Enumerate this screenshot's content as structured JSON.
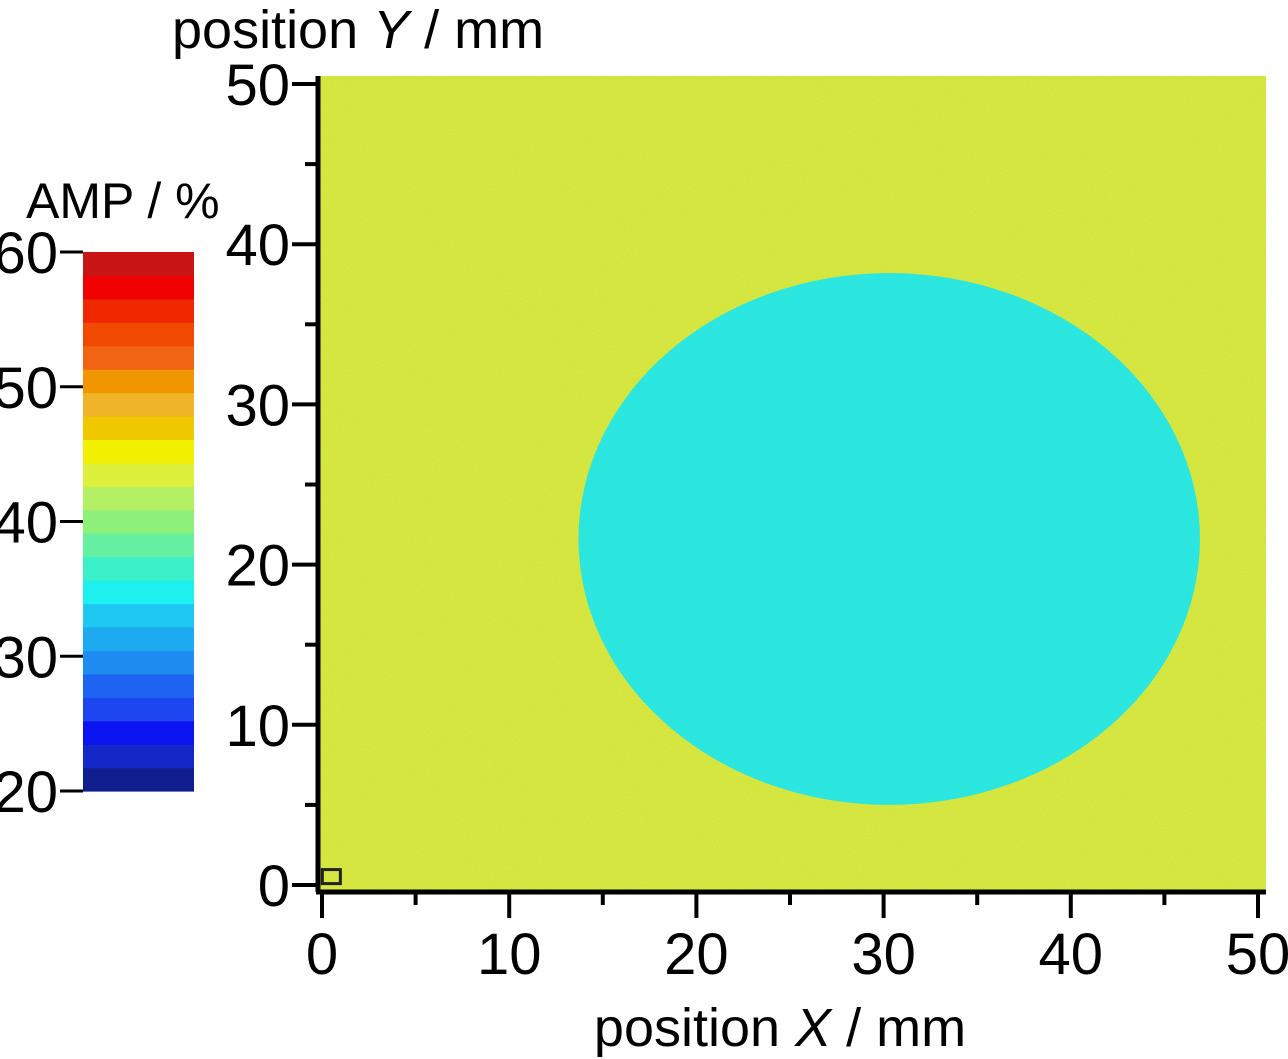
{
  "chart_data": {
    "type": "heatmap",
    "title": "",
    "xlabel": {
      "prefix": "position ",
      "var": "X",
      "suffix": " / mm"
    },
    "ylabel": {
      "prefix": "position ",
      "var": "Y",
      "suffix": " / mm"
    },
    "xlim": [
      0,
      50
    ],
    "ylim": [
      0,
      50
    ],
    "x_ticks": [
      0,
      10,
      20,
      30,
      40,
      50
    ],
    "y_ticks": [
      0,
      10,
      20,
      30,
      40,
      50
    ],
    "x_minor_step": 5,
    "y_minor_step": 5,
    "grid": false,
    "background_value": 44,
    "feature": {
      "shape": "ellipse",
      "center_x": 30.3,
      "center_y": 21.6,
      "radius_x": 16.6,
      "radius_y": 16.6,
      "value": 34
    },
    "corner_marker": {
      "x": 0.5,
      "y": 0.4
    },
    "colorbar": {
      "label": "AMP / %",
      "min": 20,
      "max": 60,
      "ticks": [
        20,
        30,
        40,
        50,
        60
      ],
      "placement": "left",
      "colors": [
        "#0f1e8c",
        "#1428c8",
        "#0a14f0",
        "#1e46f0",
        "#1e64f0",
        "#1e8cf0",
        "#1eaaf0",
        "#1ec8f0",
        "#1ef0f0",
        "#3cf0c8",
        "#64f0a0",
        "#8cf07a",
        "#b4f064",
        "#dcf03c",
        "#f0f000",
        "#f0c800",
        "#f0b428",
        "#f09600",
        "#f06414",
        "#f04a00",
        "#f02800",
        "#f00000",
        "#c81414"
      ]
    }
  }
}
